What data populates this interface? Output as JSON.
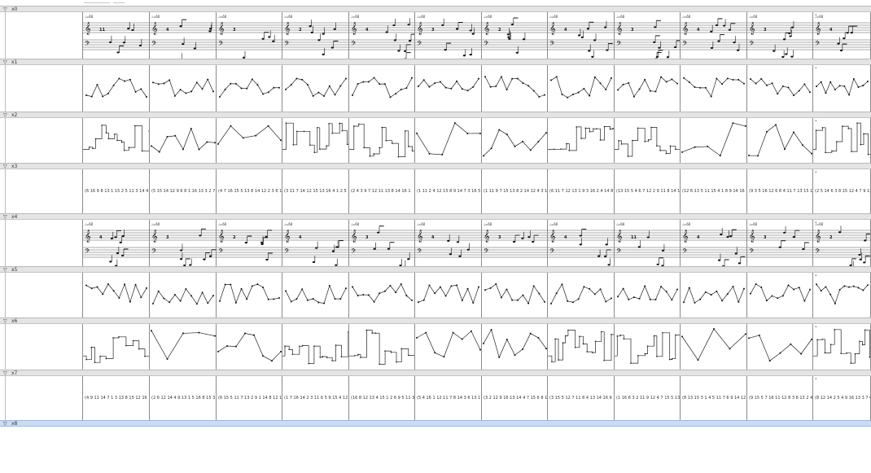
{
  "rows": [
    {
      "label": "x0",
      "kind": "score",
      "selected": false
    },
    {
      "label": "x1",
      "kind": "contour",
      "selected": false
    },
    {
      "label": "x2",
      "kind": "steps",
      "selected": false
    },
    {
      "label": "x3",
      "kind": "text",
      "selected": false
    },
    {
      "label": "x4",
      "kind": "score",
      "selected": false
    },
    {
      "label": "x5",
      "kind": "contour",
      "selected": false
    },
    {
      "label": "x6",
      "kind": "steps",
      "selected": false
    },
    {
      "label": "x7",
      "kind": "text",
      "selected": false
    },
    {
      "label": "x8",
      "kind": "empty",
      "selected": true
    }
  ],
  "tempo_mark": "♩=60",
  "row_marker": "*",
  "sequences": {
    "x3": [
      "(6 16 9 8 13 1 15 2 5 11 3 14 4",
      "(5 15 14 12 9 6 8 1 16 13 3 2 7",
      "(4 7 16 15 5 13 8 14 12 2 3 6 1",
      "(3 11 7 14 12 15 13 16 4 1 2 5",
      "(2 4 3 9 7 12 11 13 8 14 16 1",
      "(1 11 2 4 12 15 8 9 14 7 3 16 5",
      "(1 11 9 7 15 13 8 2 14 12 4 3 1",
      "(6 11 7 12 13 1 9 3 16 2 4 14 8",
      "(13 15 5 4 6 7 12 2 9 11 8 14 1",
      "(12 6 13 5 11 15 4 1 8 9 14 16",
      "(9 3 5 16 12 6 8 4 11 7 13 15 1",
      "(2 5 14 6 3 8 15 12 4 7 9 13"
    ],
    "x7": [
      "(4 9 11 14 7 1 3 13 8 15 12 16",
      "(2 6 12 14 4 9 13 1 5 16 8 15 3",
      "(6 15 5 11 7 13 2 9 1 14 8 12 1",
      "(1 7 16 14 2 3 11 6 5 9 15 4 12",
      "(16 8 12 13 4 15 1 2 6 9 5 11 3",
      "(5 4 16 1 12 11 7 8 14 3 6 13 1",
      "(3 2 12 9 16 13 14 4 7 15 6 8 1",
      "(3 15 5 12 7 11 8 4 13 14 16 9",
      "(1 16 6 3 2 11 9 12 4 7 15 5 13",
      "(8 13 15 3 1 4 5 11 7 6 9 14 12",
      "(9 15 5 7 16 11 12 8 3 6 13 2 4",
      "(8 12 14 2 5 4 9 16 13 3 7 6"
    ]
  }
}
